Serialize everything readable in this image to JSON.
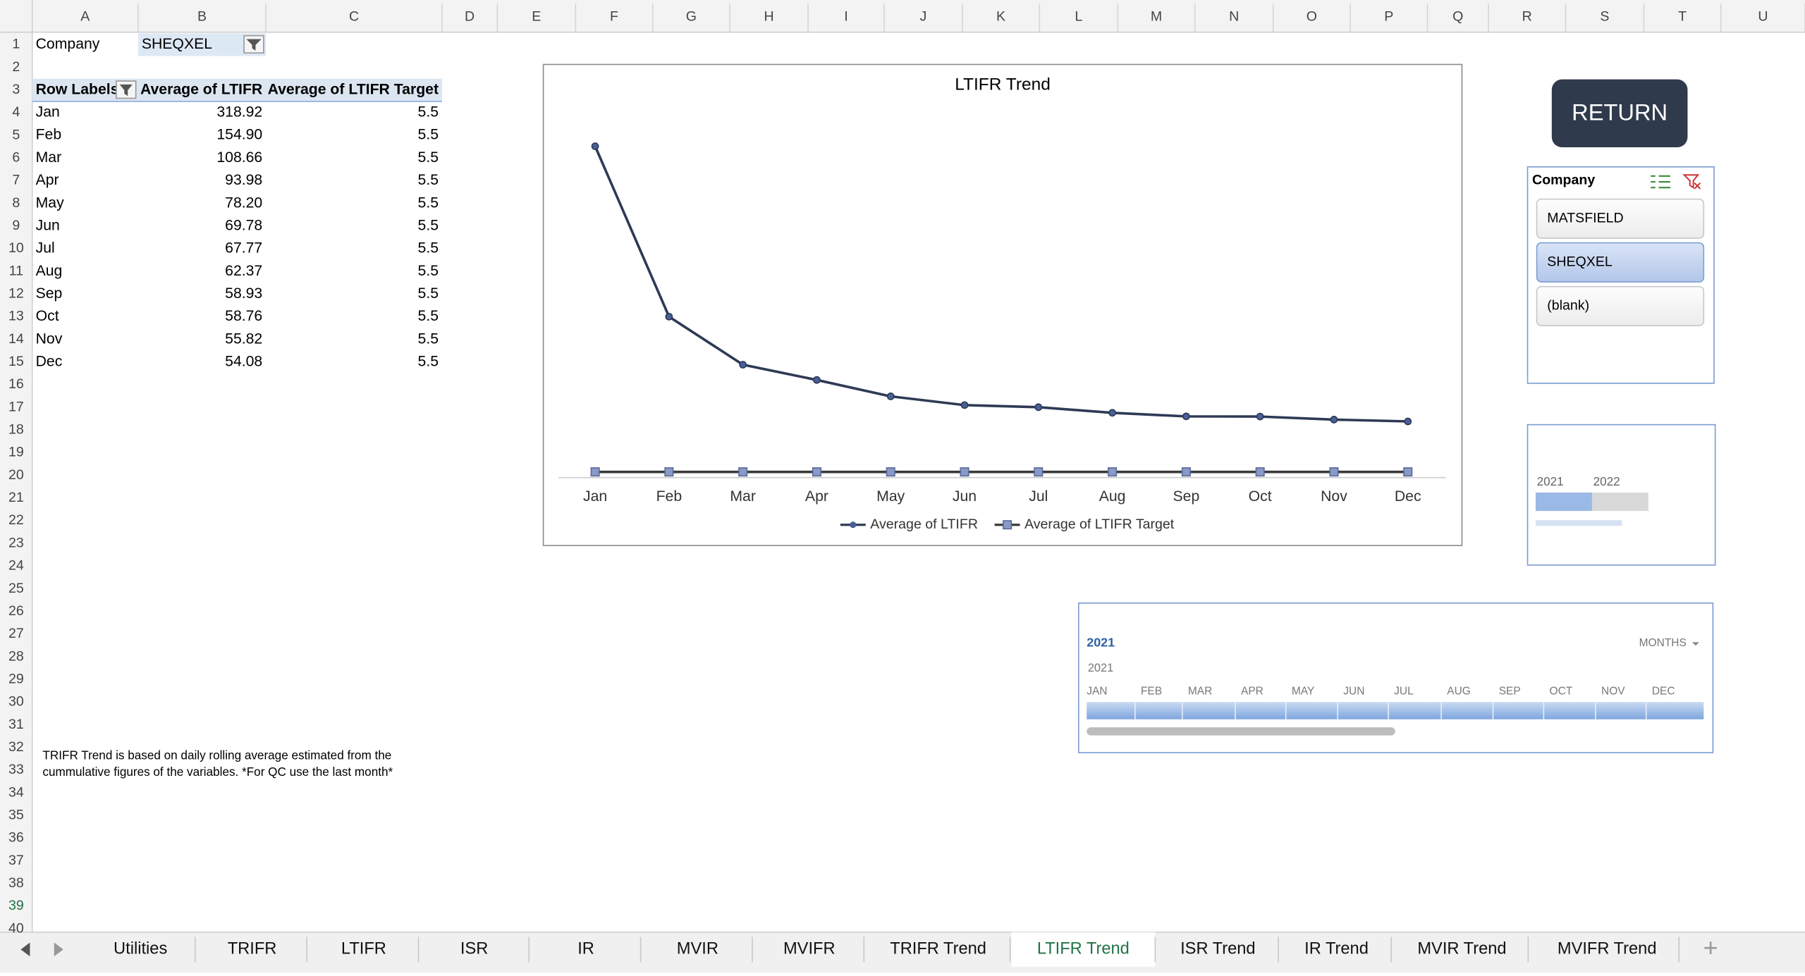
{
  "sheet": {
    "columns": [
      "A",
      "B",
      "C",
      "D",
      "E",
      "F",
      "G",
      "H",
      "I",
      "J",
      "K",
      "L",
      "M",
      "N",
      "O",
      "P",
      "Q",
      "R",
      "S",
      "T",
      "U"
    ],
    "rows": [
      1,
      2,
      3,
      4,
      5,
      6,
      7,
      8,
      9,
      10,
      11,
      12,
      13,
      14,
      15,
      16,
      17,
      18,
      19,
      20,
      21,
      22,
      23,
      24,
      25,
      26,
      27,
      28,
      29,
      30,
      31,
      32,
      33,
      34,
      35,
      36,
      37,
      38,
      39,
      40
    ],
    "pivot": {
      "filter_label": "Company",
      "filter_value": "SHEQXEL",
      "headers": [
        "Row Labels",
        "Average of LTIFR",
        "Average of LTIFR Target"
      ],
      "rows": [
        [
          "Jan",
          "318.92",
          "5.5"
        ],
        [
          "Feb",
          "154.90",
          "5.5"
        ],
        [
          "Mar",
          "108.66",
          "5.5"
        ],
        [
          "Apr",
          "93.98",
          "5.5"
        ],
        [
          "May",
          "78.20",
          "5.5"
        ],
        [
          "Jun",
          "69.78",
          "5.5"
        ],
        [
          "Jul",
          "67.77",
          "5.5"
        ],
        [
          "Aug",
          "62.37",
          "5.5"
        ],
        [
          "Sep",
          "58.93",
          "5.5"
        ],
        [
          "Oct",
          "58.76",
          "5.5"
        ],
        [
          "Nov",
          "55.82",
          "5.5"
        ],
        [
          "Dec",
          "54.08",
          "5.5"
        ]
      ]
    },
    "note": [
      "TRIFR Trend is based on daily rolling average estimated from the",
      "cummulative figures of the variables. *For QC use the last month*"
    ]
  },
  "chart_data": {
    "type": "line",
    "title": "LTIFR Trend",
    "categories": [
      "Jan",
      "Feb",
      "Mar",
      "Apr",
      "May",
      "Jun",
      "Jul",
      "Aug",
      "Sep",
      "Oct",
      "Nov",
      "Dec"
    ],
    "series": [
      {
        "name": "Average of LTIFR",
        "color": "#2e3a55",
        "values": [
          318.92,
          154.9,
          108.66,
          93.98,
          78.2,
          69.78,
          67.77,
          62.37,
          58.93,
          58.76,
          55.82,
          54.08
        ]
      },
      {
        "name": "Average of LTIFR Target",
        "color": "#3a3a3a",
        "values": [
          5.5,
          5.5,
          5.5,
          5.5,
          5.5,
          5.5,
          5.5,
          5.5,
          5.5,
          5.5,
          5.5,
          5.5
        ]
      }
    ],
    "ylim": [
      0,
      350
    ],
    "legend": "bottom"
  },
  "return_button": "RETURN",
  "slicer": {
    "title": "Company",
    "items": [
      "MATSFIELD",
      "SHEQXEL",
      "(blank)"
    ],
    "selected_index": 1
  },
  "year_slicer": {
    "items": [
      "2021",
      "2022"
    ]
  },
  "timeline": {
    "title": "2021",
    "period": "MONTHS",
    "year": "2021",
    "months": [
      "JAN",
      "FEB",
      "MAR",
      "APR",
      "MAY",
      "JUN",
      "JUL",
      "AUG",
      "SEP",
      "OCT",
      "NOV",
      "DEC"
    ]
  },
  "tabs": {
    "items": [
      "Utilities",
      "TRIFR",
      "LTIFR",
      "ISR",
      "IR",
      "MVIR",
      "MVIFR",
      "TRIFR Trend",
      "LTIFR Trend",
      "ISR Trend",
      "IR Trend",
      "MVIR Trend",
      "MVIFR Trend"
    ],
    "active_index": 8
  }
}
